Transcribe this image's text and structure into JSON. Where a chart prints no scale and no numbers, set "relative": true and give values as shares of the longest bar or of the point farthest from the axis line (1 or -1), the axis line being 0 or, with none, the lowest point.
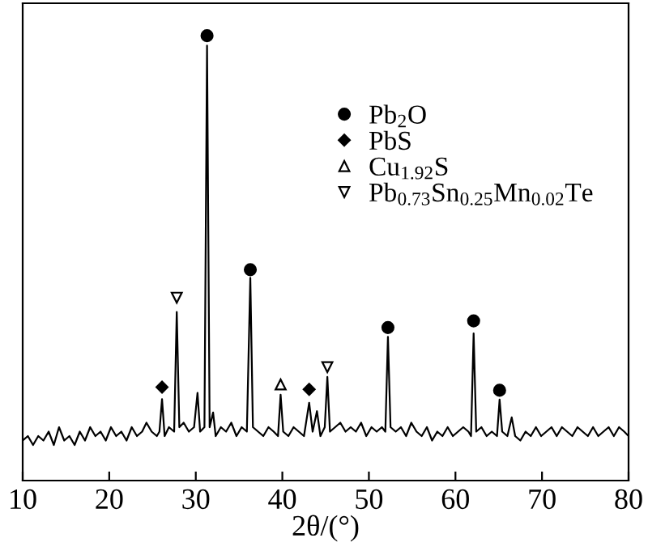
{
  "chart_data": {
    "type": "line",
    "relative": true,
    "xlabel": "2θ/(°)",
    "xlim": [
      10,
      80
    ],
    "xticks": [
      10,
      20,
      30,
      40,
      50,
      60,
      70,
      80
    ],
    "tick_labels": "x",
    "grid": false,
    "legend": "top right",
    "series": [
      {
        "color": "#000000",
        "marker": "none",
        "x": [
          10,
          10.6,
          11.2,
          11.8,
          12.4,
          13.0,
          13.6,
          14.2,
          14.8,
          15.4,
          16.0,
          16.6,
          17.2,
          17.8,
          18.4,
          19.0,
          19.6,
          20.2,
          20.8,
          21.4,
          22.0,
          22.6,
          23.2,
          23.8,
          24.3,
          24.9,
          25.5,
          25.8,
          26.1,
          26.4,
          26.9,
          27.5,
          27.8,
          28.1,
          28.6,
          29.2,
          29.8,
          30.2,
          30.5,
          31.0,
          31.3,
          31.6,
          32.0,
          32.3,
          32.9,
          33.5,
          34.1,
          34.7,
          35.3,
          35.9,
          36.3,
          36.6,
          37.2,
          37.8,
          38.4,
          39.0,
          39.5,
          39.8,
          40.1,
          40.7,
          41.3,
          41.9,
          42.5,
          43.1,
          43.5,
          44.0,
          44.4,
          44.9,
          45.2,
          45.5,
          46.1,
          46.7,
          47.3,
          47.9,
          48.5,
          49.1,
          49.7,
          50.3,
          50.9,
          51.5,
          51.9,
          52.2,
          52.5,
          53.1,
          53.7,
          54.3,
          54.9,
          55.5,
          56.1,
          56.7,
          57.3,
          57.9,
          58.5,
          59.1,
          59.7,
          60.3,
          60.9,
          61.5,
          61.8,
          62.1,
          62.4,
          63.0,
          63.6,
          64.2,
          64.8,
          65.1,
          65.4,
          66.0,
          66.5,
          66.9,
          67.5,
          68.1,
          68.7,
          69.3,
          69.9,
          70.5,
          71.1,
          71.7,
          72.3,
          72.9,
          73.5,
          74.1,
          74.7,
          75.3,
          75.9,
          76.5,
          77.1,
          77.7,
          78.3,
          78.9,
          79.5,
          80
        ],
        "values": [
          0.09,
          0.1,
          0.08,
          0.1,
          0.09,
          0.11,
          0.08,
          0.12,
          0.09,
          0.1,
          0.08,
          0.11,
          0.09,
          0.12,
          0.1,
          0.11,
          0.09,
          0.12,
          0.1,
          0.11,
          0.09,
          0.12,
          0.1,
          0.11,
          0.13,
          0.11,
          0.1,
          0.11,
          0.183,
          0.1,
          0.12,
          0.11,
          0.379,
          0.12,
          0.13,
          0.11,
          0.12,
          0.197,
          0.11,
          0.12,
          0.978,
          0.12,
          0.153,
          0.1,
          0.12,
          0.11,
          0.13,
          0.1,
          0.12,
          0.11,
          0.456,
          0.12,
          0.11,
          0.1,
          0.12,
          0.11,
          0.1,
          0.193,
          0.11,
          0.1,
          0.12,
          0.11,
          0.1,
          0.175,
          0.11,
          0.156,
          0.1,
          0.12,
          0.233,
          0.11,
          0.12,
          0.13,
          0.11,
          0.12,
          0.11,
          0.13,
          0.1,
          0.12,
          0.11,
          0.12,
          0.11,
          0.323,
          0.12,
          0.11,
          0.12,
          0.1,
          0.13,
          0.11,
          0.1,
          0.12,
          0.09,
          0.11,
          0.1,
          0.12,
          0.1,
          0.11,
          0.12,
          0.11,
          0.1,
          0.331,
          0.11,
          0.12,
          0.1,
          0.11,
          0.1,
          0.182,
          0.11,
          0.1,
          0.142,
          0.1,
          0.09,
          0.11,
          0.1,
          0.12,
          0.1,
          0.11,
          0.12,
          0.1,
          0.12,
          0.11,
          0.1,
          0.12,
          0.11,
          0.1,
          0.12,
          0.1,
          0.11,
          0.12,
          0.1,
          0.12,
          0.11,
          0.1
        ]
      },
      {
        "type": "scatter",
        "name": "Pb$_{2}$O",
        "color": "#000000",
        "marker": "circle",
        "x": [
          31.3,
          36.3,
          52.2,
          62.1,
          65.1
        ],
        "values": [
          1.0,
          0.474,
          0.344,
          0.359,
          0.203
        ]
      },
      {
        "type": "scatter",
        "name": "PbS",
        "color": "#000000",
        "marker": "diamond",
        "x": [
          26.1,
          43.1
        ],
        "values": [
          0.21,
          0.205
        ]
      },
      {
        "type": "scatter",
        "name": "Cu$_{1.92}$S",
        "color": "#000000",
        "marker": "triangle",
        "x": [
          39.8
        ],
        "values": [
          0.216
        ]
      },
      {
        "type": "scatter",
        "name": "Pb$_{0.73}$Sn$_{0.25}$Mn$_{0.02}$Te",
        "color": "#000000",
        "marker": "triangle_down",
        "x": [
          27.8,
          45.2
        ],
        "values": [
          0.411,
          0.255
        ]
      }
    ]
  }
}
